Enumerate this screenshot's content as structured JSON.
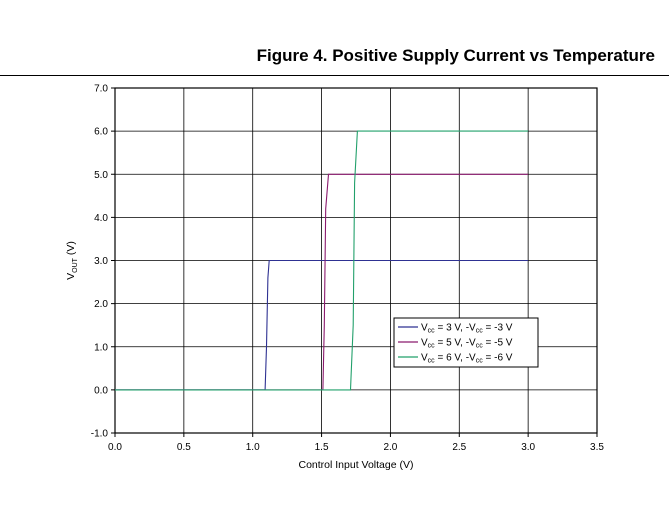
{
  "figure": {
    "title": "Figure 4. Positive Supply Current vs Temperature"
  },
  "chart_data": {
    "type": "line",
    "title": "Figure 4. Positive Supply Current vs Temperature",
    "xlabel": "Control Input Voltage (V)",
    "ylabel": {
      "main": "V",
      "sub": "OUT",
      "unit": " (V)"
    },
    "xlim": [
      0,
      3.5
    ],
    "ylim": [
      -1,
      7
    ],
    "xticks": [
      "0.0",
      "0.5",
      "1.0",
      "1.5",
      "2.0",
      "2.5",
      "3.0",
      "3.5"
    ],
    "yticks": [
      "-1.0",
      "0.0",
      "1.0",
      "2.0",
      "3.0",
      "4.0",
      "5.0",
      "6.0",
      "7.0"
    ],
    "grid": true,
    "legend_position": "inside lower right",
    "series": [
      {
        "name": "Vcc = 3 V, -Vcc = -3 V",
        "legend": [
          {
            "t": "V",
            "s": false
          },
          {
            "t": "cc",
            "s": true
          },
          {
            "t": " = 3 V, -V",
            "s": false
          },
          {
            "t": "cc",
            "s": true
          },
          {
            "t": " = -3 V",
            "s": false
          }
        ],
        "color": "#2e3192",
        "x": [
          0,
          1.09,
          1.1,
          1.11,
          1.12,
          3.0
        ],
        "y": [
          0,
          0,
          1.0,
          2.6,
          3.0,
          3.0
        ]
      },
      {
        "name": "Vcc = 5 V, -Vcc = -5 V",
        "legend": [
          {
            "t": "V",
            "s": false
          },
          {
            "t": "cc",
            "s": true
          },
          {
            "t": " = 5 V, -V",
            "s": false
          },
          {
            "t": "cc",
            "s": true
          },
          {
            "t": " = -5 V",
            "s": false
          }
        ],
        "color": "#8b1a6e",
        "x": [
          0,
          1.51,
          1.52,
          1.53,
          1.55,
          3.0
        ],
        "y": [
          0,
          0,
          1.5,
          4.2,
          5.0,
          5.0
        ]
      },
      {
        "name": "Vcc = 6 V, -Vcc = -6 V",
        "legend": [
          {
            "t": "V",
            "s": false
          },
          {
            "t": "cc",
            "s": true
          },
          {
            "t": " = 6 V, -V",
            "s": false
          },
          {
            "t": "cc",
            "s": true
          },
          {
            "t": " = -6 V",
            "s": false
          }
        ],
        "color": "#22a06b",
        "x": [
          0,
          1.71,
          1.73,
          1.74,
          1.76,
          3.0
        ],
        "y": [
          0,
          0,
          1.5,
          4.8,
          6.0,
          6.0
        ]
      }
    ]
  }
}
